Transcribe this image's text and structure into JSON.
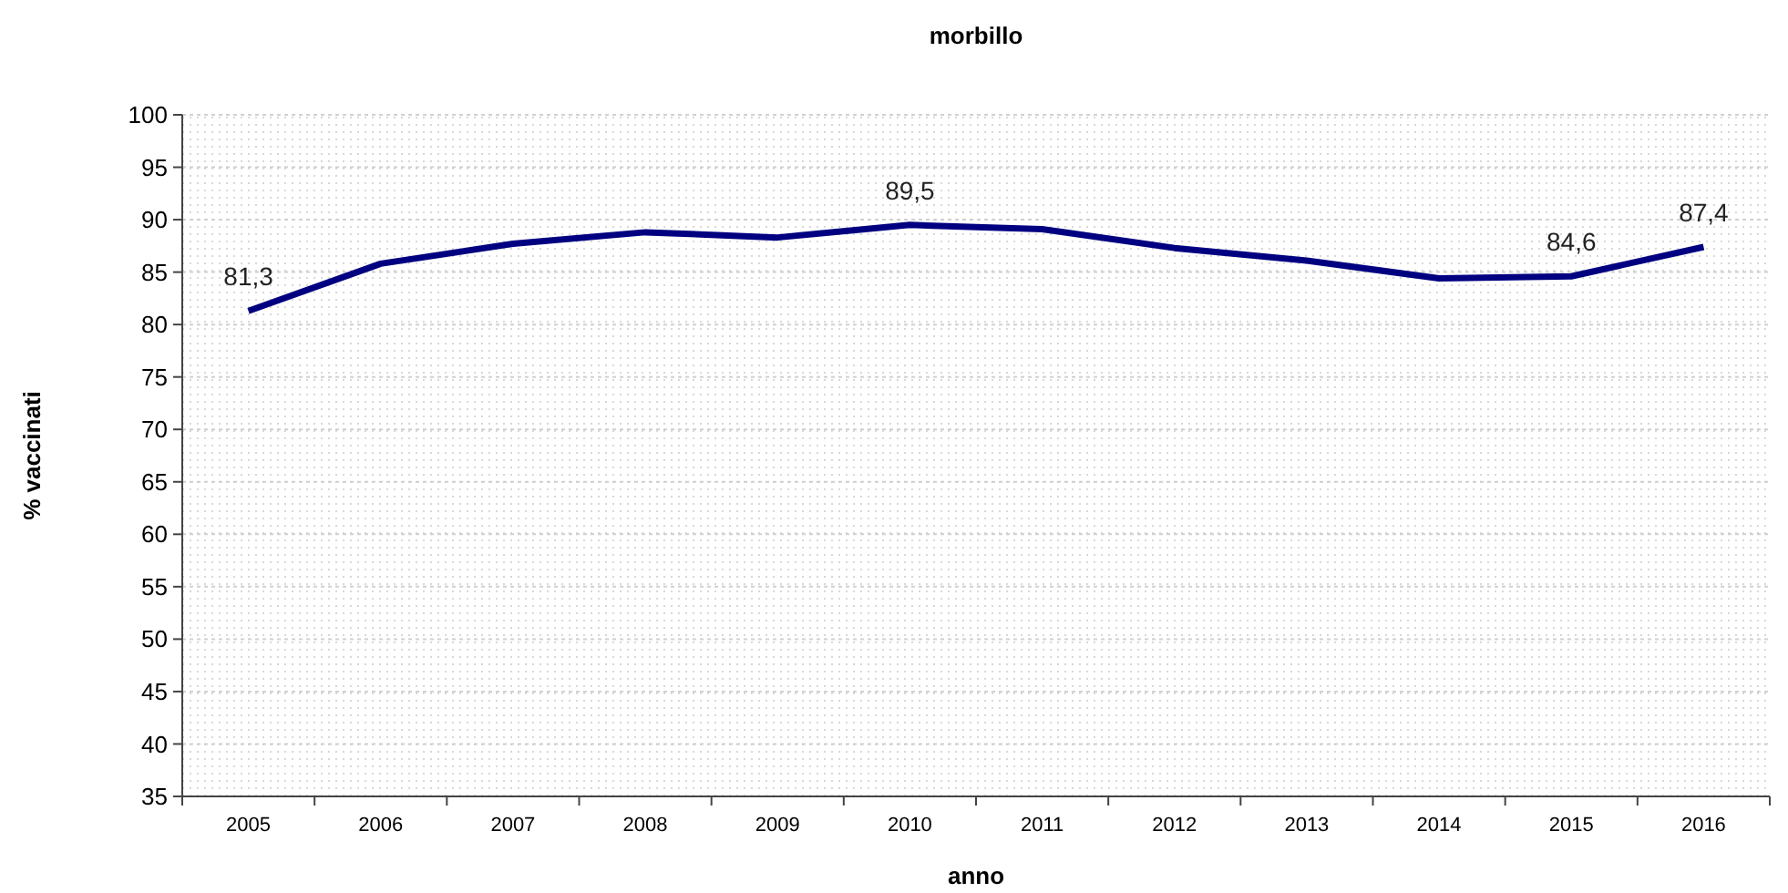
{
  "chart_data": {
    "type": "line",
    "title": "morbillo",
    "xlabel": "anno",
    "ylabel": "% vaccinati",
    "categories": [
      "2005",
      "2006",
      "2007",
      "2008",
      "2009",
      "2010",
      "2011",
      "2012",
      "2013",
      "2014",
      "2015",
      "2016"
    ],
    "series": [
      {
        "color": "#000080",
        "values": [
          81.3,
          85.8,
          87.7,
          88.8,
          88.3,
          89.5,
          89.1,
          87.3,
          86.1,
          84.4,
          84.6,
          87.4
        ],
        "value_labels": [
          "81,3",
          null,
          null,
          null,
          null,
          "89,5",
          null,
          null,
          null,
          null,
          "84,6",
          "87,4"
        ]
      }
    ],
    "ylim": [
      35,
      100
    ],
    "yticks": [
      35,
      40,
      45,
      50,
      55,
      60,
      65,
      70,
      75,
      80,
      85,
      90,
      95,
      100
    ],
    "grid": "y",
    "marker": "none",
    "line_style": "solid"
  }
}
